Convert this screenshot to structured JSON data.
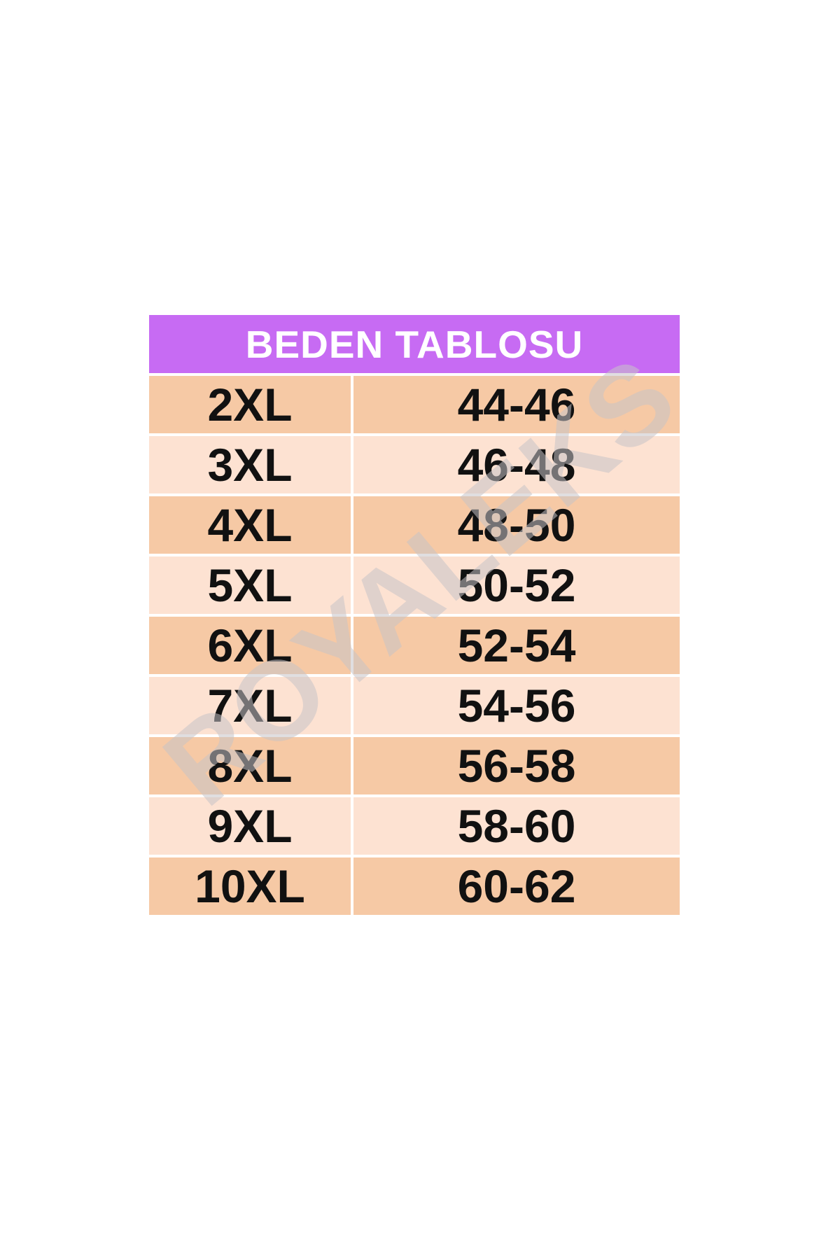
{
  "chart_data": {
    "type": "table",
    "title": "BEDEN TABLOSU",
    "rows": [
      [
        "2XL",
        "44-46"
      ],
      [
        "3XL",
        "46-48"
      ],
      [
        "4XL",
        "48-50"
      ],
      [
        "5XL",
        "50-52"
      ],
      [
        "6XL",
        "52-54"
      ],
      [
        "7XL",
        "54-56"
      ],
      [
        "8XL",
        "56-58"
      ],
      [
        "9XL",
        "58-60"
      ],
      [
        "10XL",
        "60-62"
      ]
    ]
  },
  "watermark": {
    "text": "ROYALEKS"
  },
  "colors": {
    "page_bg": "#ffffff",
    "header_bg": "#c76bf3",
    "header_text": "#ffffff",
    "row_dark": "#f6c9a5",
    "row_light": "#fde2d2",
    "cell_text": "#111111",
    "watermark": "rgba(198,195,198,0.55)"
  }
}
